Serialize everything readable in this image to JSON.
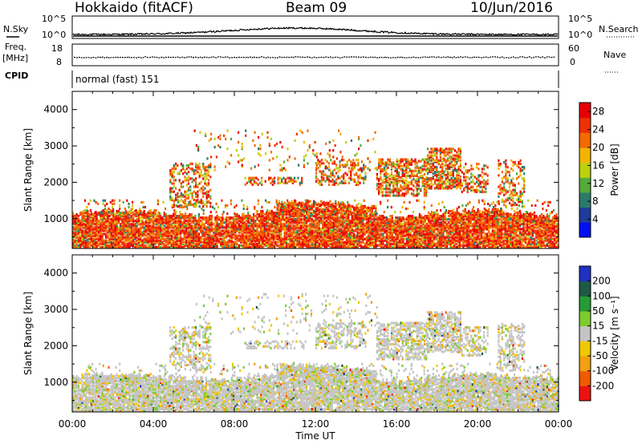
{
  "header": {
    "title": "Hokkaido (fitACF)",
    "beam": "Beam 09",
    "date": "10/Jun/2016"
  },
  "strips": {
    "nsky_label": "N.Sky",
    "nsky_ticks": [
      "10^5",
      "10^0"
    ],
    "nsearch_label": "N.Search",
    "nsearch_ticks": [
      "10^5",
      "10^0"
    ],
    "freq_label": "Freq.",
    "freq_unit": "[MHz]",
    "freq_ticks": [
      "18",
      "8"
    ],
    "nave_label": "Nave",
    "nave_ticks": [
      "60",
      "0"
    ],
    "cpid_label": "CPID",
    "cpid_value": "normal (fast) 151"
  },
  "colors": {
    "power": [
      "#0010f0",
      "#1e3c9a",
      "#2c7a6a",
      "#55aa3a",
      "#bcd10e",
      "#f3b400",
      "#f36a00",
      "#f03000",
      "#e80000"
    ],
    "velocity": [
      "#ee1111",
      "#f05a00",
      "#f2a010",
      "#f0c800",
      "#c4c4c4",
      "#7ccc2e",
      "#259a35",
      "#1d5a45",
      "#2030c0"
    ]
  },
  "chart_data": [
    {
      "type": "heatmap",
      "panel": "power",
      "ylabel": "Slant Range [km]",
      "xlabel": "Time UT",
      "x_ticks": [
        "00:00",
        "04:00",
        "08:00",
        "12:00",
        "16:00",
        "20:00",
        "00:00"
      ],
      "xlim_hours": [
        0,
        24
      ],
      "y_ticks": [
        1000,
        2000,
        3000,
        4000
      ],
      "ylim_km": [
        180,
        4500
      ],
      "colorbar": {
        "label": "Power [dB]",
        "ticks": [
          4,
          8,
          12,
          16,
          20,
          24,
          28
        ],
        "range": [
          0,
          30
        ]
      }
    },
    {
      "type": "heatmap",
      "panel": "velocity",
      "ylabel": "Slant Range [km]",
      "xlabel": "Time UT",
      "x_ticks": [
        "00:00",
        "04:00",
        "08:00",
        "12:00",
        "16:00",
        "20:00",
        "00:00"
      ],
      "xlim_hours": [
        0,
        24
      ],
      "y_ticks": [
        1000,
        2000,
        3000,
        4000
      ],
      "ylim_km": [
        180,
        4500
      ],
      "colorbar": {
        "label": "Velocity [m s⁻¹]",
        "ticks": [
          "200",
          "100",
          "50",
          "15",
          "-15",
          "-50",
          "-100",
          "-200"
        ]
      }
    }
  ]
}
